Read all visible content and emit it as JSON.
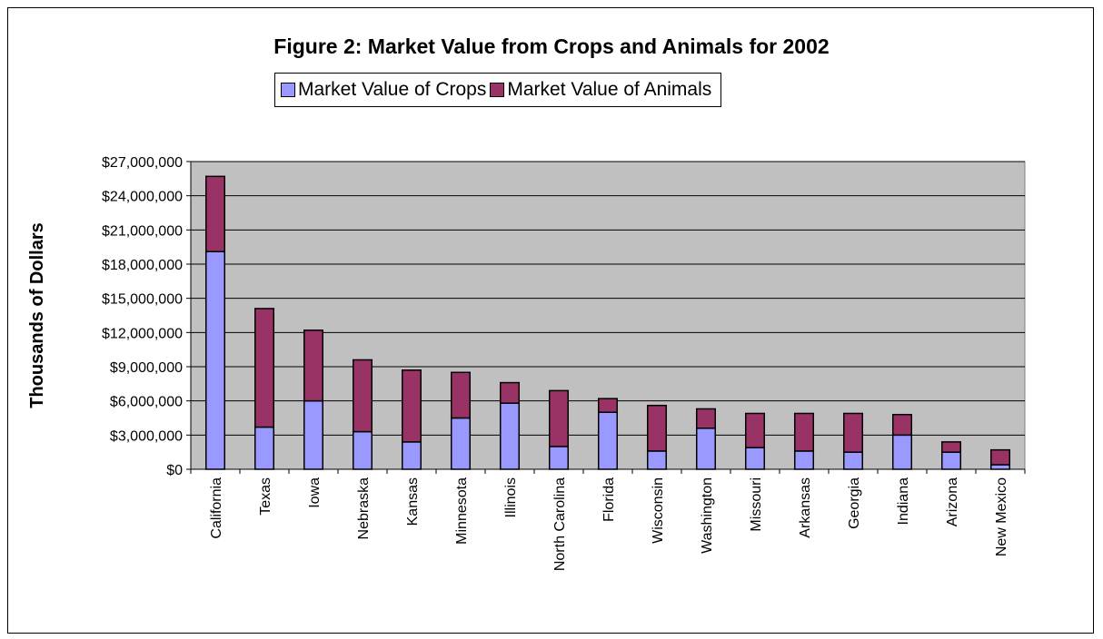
{
  "chart_data": {
    "type": "bar",
    "stacked": true,
    "title": "Figure 2: Market Value from Crops and Animals for 2002",
    "ylabel": "Thousands of Dollars",
    "xlabel": "",
    "ylim": [
      0,
      27000000
    ],
    "ytick_values": [
      0,
      3000000,
      6000000,
      9000000,
      12000000,
      15000000,
      18000000,
      21000000,
      24000000,
      27000000
    ],
    "ytick_labels": [
      "$0",
      "$3,000,000",
      "$6,000,000",
      "$9,000,000",
      "$12,000,000",
      "$15,000,000",
      "$18,000,000",
      "$21,000,000",
      "$24,000,000",
      "$27,000,000"
    ],
    "grid": true,
    "legend_position": "top",
    "plot_background": "#c0c0c0",
    "categories": [
      "California",
      "Texas",
      "Iowa",
      "Nebraska",
      "Kansas",
      "Minnesota",
      "Illinois",
      "North Carolina",
      "Florida",
      "Wisconsin",
      "Washington",
      "Missouri",
      "Arkansas",
      "Georgia",
      "Indiana",
      "Arizona",
      "New Mexico"
    ],
    "series": [
      {
        "name": "Market Value of Crops",
        "color": "#9999ff",
        "values": [
          19100000,
          3700000,
          6000000,
          3300000,
          2400000,
          4500000,
          5800000,
          2000000,
          5000000,
          1600000,
          3600000,
          1900000,
          1600000,
          1500000,
          3000000,
          1500000,
          400000
        ]
      },
      {
        "name": "Market Value of Animals",
        "color": "#993366",
        "values": [
          6600000,
          10400000,
          6200000,
          6300000,
          6300000,
          4000000,
          1800000,
          4900000,
          1200000,
          4000000,
          1700000,
          3000000,
          3300000,
          3400000,
          1800000,
          900000,
          1300000
        ]
      }
    ]
  }
}
